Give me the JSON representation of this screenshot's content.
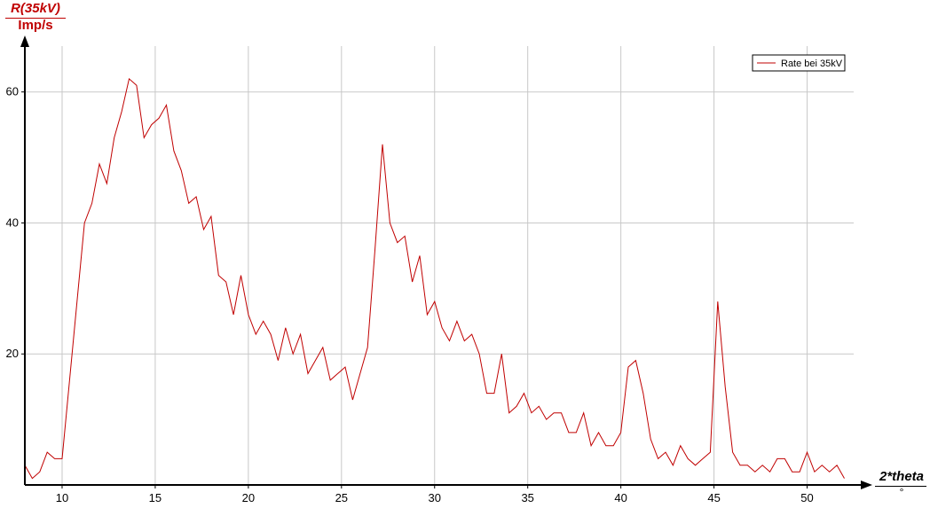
{
  "chart_data": {
    "type": "line",
    "y_axis": {
      "label": "R(35kV)",
      "unit": "Imp/s",
      "range": [
        0,
        67
      ],
      "ticks": [
        20,
        40,
        60
      ]
    },
    "x_axis": {
      "label": "2*theta",
      "unit": "°",
      "range": [
        8,
        52.5
      ],
      "ticks": [
        10,
        15,
        20,
        25,
        30,
        35,
        40,
        45,
        50
      ]
    },
    "grid": true,
    "legend": {
      "placement": "top-right",
      "entries": [
        "Rate bei 35kV"
      ]
    },
    "colors": {
      "series": "#c00000",
      "grid": "#c8c8c8",
      "axis": "#000000",
      "y_title": "#c00000"
    },
    "series": [
      {
        "name": "Rate bei 35kV",
        "x": [
          8.0,
          8.4,
          8.8,
          9.2,
          9.6,
          10.0,
          10.4,
          10.8,
          11.2,
          11.6,
          12.0,
          12.4,
          12.8,
          13.2,
          13.6,
          14.0,
          14.4,
          14.8,
          15.2,
          15.6,
          16.0,
          16.4,
          16.8,
          17.2,
          17.6,
          18.0,
          18.4,
          18.8,
          19.2,
          19.6,
          20.0,
          20.4,
          20.8,
          21.2,
          21.6,
          22.0,
          22.4,
          22.8,
          23.2,
          23.6,
          24.0,
          24.4,
          24.8,
          25.2,
          25.6,
          26.0,
          26.4,
          26.8,
          27.2,
          27.6,
          28.0,
          28.4,
          28.8,
          29.2,
          29.6,
          30.0,
          30.4,
          30.8,
          31.2,
          31.6,
          32.0,
          32.4,
          32.8,
          33.2,
          33.6,
          34.0,
          34.4,
          34.8,
          35.2,
          35.6,
          36.0,
          36.4,
          36.8,
          37.2,
          37.6,
          38.0,
          38.4,
          38.8,
          39.2,
          39.6,
          40.0,
          40.4,
          40.8,
          41.2,
          41.6,
          42.0,
          42.4,
          42.8,
          43.2,
          43.6,
          44.0,
          44.4,
          44.8,
          45.2,
          45.6,
          46.0,
          46.4,
          46.8,
          47.2,
          47.6,
          48.0,
          48.4,
          48.8,
          49.2,
          49.6,
          50.0,
          50.4,
          50.8,
          51.2,
          51.6,
          52.0
        ],
        "y": [
          3,
          1,
          2,
          5,
          4,
          4,
          16,
          28,
          40,
          43,
          49,
          46,
          53,
          57,
          62,
          61,
          53,
          55,
          56,
          58,
          51,
          48,
          43,
          44,
          39,
          41,
          32,
          31,
          26,
          32,
          26,
          23,
          25,
          23,
          19,
          24,
          20,
          23,
          17,
          19,
          21,
          16,
          17,
          18,
          13,
          17,
          21,
          36,
          52,
          40,
          37,
          38,
          31,
          35,
          26,
          28,
          24,
          22,
          25,
          22,
          23,
          20,
          14,
          14,
          20,
          11,
          12,
          14,
          11,
          12,
          10,
          11,
          11,
          8,
          8,
          11,
          6,
          8,
          6,
          6,
          8,
          18,
          19,
          14,
          7,
          4,
          5,
          3,
          6,
          4,
          3,
          4,
          5,
          28,
          15,
          5,
          3,
          3,
          2,
          3,
          2,
          4,
          4,
          2,
          2,
          5,
          2,
          3,
          2,
          3,
          1
        ]
      }
    ]
  }
}
